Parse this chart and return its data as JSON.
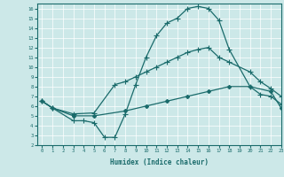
{
  "xlabel": "Humidex (Indice chaleur)",
  "background_color": "#cce8e8",
  "line_color": "#1a6b6b",
  "xlim": [
    -0.5,
    23
  ],
  "ylim": [
    2,
    16.5
  ],
  "yticks": [
    2,
    3,
    4,
    5,
    6,
    7,
    8,
    9,
    10,
    11,
    12,
    13,
    14,
    15,
    16
  ],
  "xticks": [
    0,
    1,
    2,
    3,
    4,
    5,
    6,
    7,
    8,
    9,
    10,
    11,
    12,
    13,
    14,
    15,
    16,
    17,
    18,
    19,
    20,
    21,
    22,
    23
  ],
  "line1_x": [
    0,
    1,
    3,
    4,
    5,
    6,
    7,
    8,
    9,
    10,
    11,
    12,
    13,
    14,
    15,
    16,
    17,
    18,
    20,
    21,
    22,
    23
  ],
  "line1_y": [
    6.5,
    5.8,
    4.5,
    4.5,
    4.3,
    2.8,
    2.8,
    5.2,
    8.2,
    11.0,
    13.2,
    14.5,
    15.0,
    16.0,
    16.2,
    16.0,
    14.8,
    11.8,
    8.0,
    7.2,
    7.0,
    6.2
  ],
  "line2_x": [
    0,
    1,
    3,
    5,
    7,
    8,
    9,
    10,
    11,
    12,
    13,
    14,
    15,
    16,
    17,
    18,
    20,
    21,
    22,
    23
  ],
  "line2_y": [
    6.5,
    5.8,
    5.2,
    5.3,
    8.2,
    8.5,
    9.0,
    9.5,
    10.0,
    10.5,
    11.0,
    11.5,
    11.8,
    12.0,
    11.0,
    10.5,
    9.5,
    8.5,
    7.8,
    7.0
  ],
  "line3_x": [
    0,
    1,
    3,
    5,
    8,
    10,
    12,
    14,
    16,
    18,
    20,
    22,
    23
  ],
  "line3_y": [
    6.5,
    5.8,
    5.0,
    5.0,
    5.5,
    6.0,
    6.5,
    7.0,
    7.5,
    8.0,
    8.0,
    7.5,
    5.8
  ]
}
